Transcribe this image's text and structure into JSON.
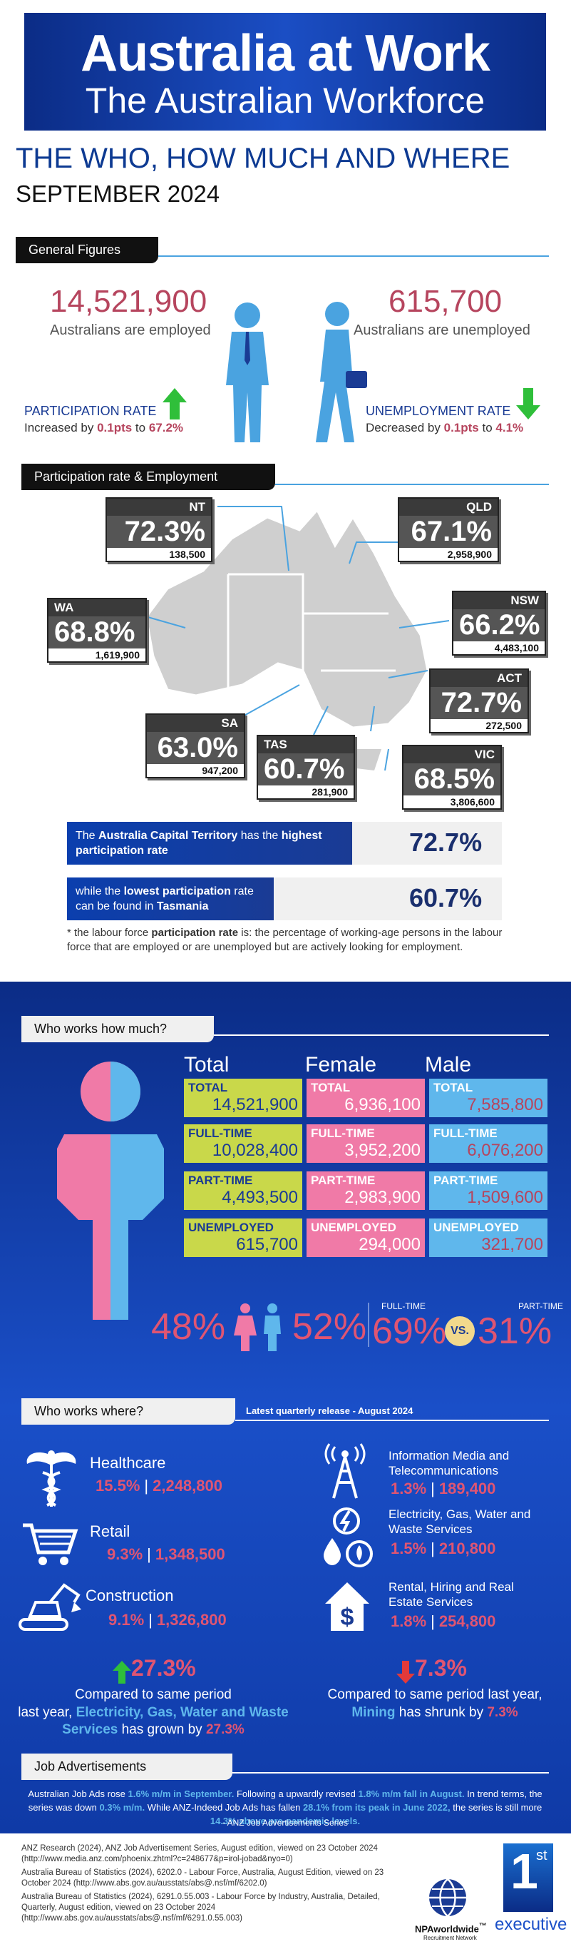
{
  "hero": {
    "title": "Australia at Work",
    "subtitle": "The Australian Workforce"
  },
  "headline": {
    "who": "THE WHO, HOW MUCH AND WHERE",
    "date": "SEPTEMBER 2024"
  },
  "general": {
    "heading": "General Figures",
    "employed_value": "14,521,900",
    "employed_label": "Australians are employed",
    "unemployed_value": "615,700",
    "unemployed_label": "Australians are unemployed",
    "participation": {
      "label": "PARTICIPATION RATE",
      "text": "Increased by ",
      "pts": "0.1pts",
      "to": " to ",
      "rate": "67.2%"
    },
    "unemployment": {
      "label": "UNEMPLOYMENT RATE",
      "text": "Decreased by ",
      "pts": "0.1pts",
      "to": " to ",
      "rate": "4.1%"
    }
  },
  "participation_section": {
    "heading": "Participation rate & Employment",
    "regions": [
      {
        "name": "NT",
        "pct": "72.3%",
        "num": "138,500"
      },
      {
        "name": "QLD",
        "pct": "67.1%",
        "num": "2,958,900"
      },
      {
        "name": "WA",
        "pct": "68.8%",
        "num": "1,619,900"
      },
      {
        "name": "NSW",
        "pct": "66.2%",
        "num": "4,483,100"
      },
      {
        "name": "ACT",
        "pct": "72.7%",
        "num": "272,500"
      },
      {
        "name": "SA",
        "pct": "63.0%",
        "num": "947,200"
      },
      {
        "name": "TAS",
        "pct": "60.7%",
        "num": "281,900"
      },
      {
        "name": "VIC",
        "pct": "68.5%",
        "num": "3,806,600"
      }
    ],
    "highest": {
      "prefix": "The ",
      "bold": "Australia Capital Territory",
      "mid": " has the ",
      "bold2": "highest participation rate",
      "value": "72.7%"
    },
    "lowest": {
      "prefix": "while the ",
      "bold": "lowest participation",
      "mid": " rate can be found in ",
      "bold2": "Tasmania",
      "value": "60.7%"
    },
    "footnote_a": "* the labour force ",
    "footnote_bold": "participation rate",
    "footnote_b": " is: the percentage of working-age persons in the labour force that are employed or are unemployed but are actively looking for employment."
  },
  "how_much": {
    "heading": "Who works how much?",
    "columns": [
      "Total",
      "Female",
      "Male"
    ],
    "rows": [
      {
        "label": "TOTAL",
        "total": "14,521,900",
        "female": "6,936,100",
        "male": "7,585,800"
      },
      {
        "label": "FULL-TIME",
        "total": "10,028,400",
        "female": "3,952,200",
        "male": "6,076,200"
      },
      {
        "label": "PART-TIME",
        "total": "4,493,500",
        "female": "2,983,900",
        "male": "1,509,600"
      },
      {
        "label": "UNEMPLOYED",
        "total": "615,700",
        "female": "294,000",
        "male": "321,700"
      }
    ],
    "female_pct": "48%",
    "male_pct": "52%",
    "fulltime_label": "FULL-TIME",
    "parttime_label": "PART-TIME",
    "fulltime_pct": "69%",
    "vs": "VS.",
    "parttime_pct": "31%"
  },
  "where": {
    "heading": "Who works where?",
    "release": "Latest quarterly release - August 2024",
    "industries": [
      {
        "name": "Healthcare",
        "pct": "15.5%",
        "num": "2,248,800",
        "icon": "caduceus-icon"
      },
      {
        "name": "Retail",
        "pct": "9.3%",
        "num": "1,348,500",
        "icon": "cart-icon"
      },
      {
        "name": "Construction",
        "pct": "9.1%",
        "num": "1,326,800",
        "icon": "excavator-icon"
      },
      {
        "name": "Information Media and Telecommunications",
        "pct": "1.3%",
        "num": "189,400",
        "icon": "tower-icon"
      },
      {
        "name": "Electricity, Gas, Water and Waste Services",
        "pct": "1.5%",
        "num": "210,800",
        "icon": "utilities-icon"
      },
      {
        "name": "Rental, Hiring and Real Estate Services",
        "pct": "1.8%",
        "num": "254,800",
        "icon": "house-dollar-icon"
      }
    ],
    "growth": {
      "value": "27.3%",
      "line1": "Compared to same period",
      "line2a": "last year, ",
      "highlight": "Electricity, Gas, Water and Waste Services",
      "line3": " has grown by ",
      "end": "27.3%"
    },
    "shrink": {
      "value": "7.3%",
      "line1": "Compared to same period last year,",
      "highlight": "Mining",
      "line2": " has shrunk by ",
      "end": "7.3%"
    }
  },
  "ads": {
    "heading": "Job Advertisements",
    "p1": "Australian Job Ads rose ",
    "h1": "1.6% m/m in September.",
    "p2": " Following a upwardly revised ",
    "h2": "1.8% m/m fall in August.",
    "p3": " In trend terms, the series was down ",
    "h3": "0.3% m/m.",
    "p4": " While ANZ-Indeed Job Ads has fallen ",
    "h4": "28.1% from its peak in June 2022,",
    "p5": " the series is still more ",
    "h5": "14.3% above pre-pandemic levels.",
    "source": "- ANZ Job Advertisements Series"
  },
  "footer": {
    "refs": [
      "ANZ Research (2024), ANZ Job Advertisement Series, August edition, viewed on 23 October 2024 (http://www.media.anz.com/phoenix.zhtml?c=248677&p=irol-jobad&nyo=0)",
      "Australia Bureau of Statistics (2024), 6202.0 - Labour Force, Australia, August Edition, viewed on 23 October 2024 (http://www.abs.gov.au/ausstats/abs@.nsf/mf/6202.0)",
      "Australia Bureau of Statistics (2024), 6291.0.55.003 - Labour Force by Industry, Australia, Detailed, Quarterly, August edition, viewed on 23 October 2024 (http://www.abs.gov.au/ausstats/abs@.nsf/mf/6291.0.55.003)"
    ],
    "logo1": "NPAworldwide",
    "logo1_tm": "™",
    "logo1_sub": "Recruitment Network",
    "logo2_num": "1",
    "logo2_sup": "st",
    "logo2_word": "executive"
  },
  "colors": {
    "navy": "#0b2c86",
    "accent_red": "#b6455e",
    "lime": "#c9d84a",
    "pink": "#f07aa7",
    "sky": "#5fb7ec"
  }
}
